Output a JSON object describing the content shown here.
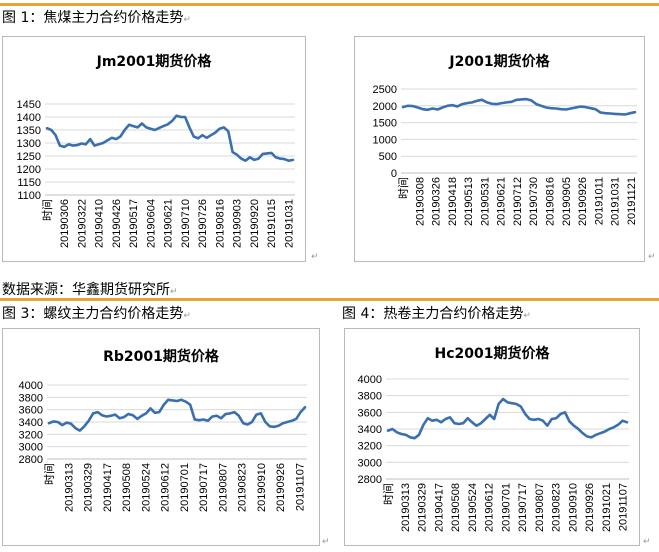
{
  "captions": {
    "fig1": "图 1：焦煤主力合约价格走势",
    "source": "数据来源：华鑫期货研究所",
    "fig3": "图 3：螺纹主力合约价格走势",
    "fig4": "图 4：热卷主力合约价格走势"
  },
  "para_mark": "↵",
  "colors": {
    "line": "#3a6fb0",
    "grid": "#d9d9d9",
    "rule": "#e8a23a"
  },
  "chart_data": [
    {
      "type": "line",
      "title": "Jm2001期货价格",
      "ylim": [
        1100,
        1450
      ],
      "yticks": [
        1100,
        1150,
        1200,
        1250,
        1300,
        1350,
        1400,
        1450
      ],
      "xlabels": [
        "时间",
        "20190306",
        "20190322",
        "20190410",
        "20190426",
        "20190517",
        "20190604",
        "20190621",
        "20190710",
        "20190726",
        "20190816",
        "20190903",
        "20190920",
        "20191015",
        "20191031"
      ],
      "series": [
        {
          "values": [
            1357,
            1350,
            1330,
            1290,
            1285,
            1295,
            1290,
            1292,
            1298,
            1295,
            1315,
            1290,
            1295,
            1300,
            1310,
            1320,
            1315,
            1325,
            1350,
            1370,
            1365,
            1360,
            1375,
            1360,
            1355,
            1350,
            1358,
            1365,
            1372,
            1385,
            1405,
            1400,
            1400,
            1360,
            1325,
            1318,
            1330,
            1320,
            1330,
            1340,
            1355,
            1360,
            1345,
            1265,
            1255,
            1240,
            1232,
            1245,
            1235,
            1240,
            1258,
            1260,
            1262,
            1245,
            1240,
            1238,
            1232,
            1235
          ]
        }
      ]
    },
    {
      "type": "line",
      "title": "J2001期货价格",
      "ylim": [
        0,
        2500
      ],
      "yticks": [
        0,
        500,
        1000,
        1500,
        2000,
        2500
      ],
      "xlabels": [
        "时间",
        "20190308",
        "20190326",
        "20190418",
        "20190513",
        "20190531",
        "20190621",
        "20190712",
        "20190730",
        "20190816",
        "20190905",
        "20190926",
        "20191011",
        "20191031",
        "20191121"
      ],
      "series": [
        {
          "values": [
            1960,
            2000,
            1990,
            1950,
            1900,
            1880,
            1920,
            1890,
            1950,
            2000,
            2020,
            1980,
            2050,
            2080,
            2100,
            2150,
            2180,
            2100,
            2060,
            2050,
            2080,
            2100,
            2120,
            2180,
            2190,
            2200,
            2160,
            2050,
            2000,
            1950,
            1930,
            1920,
            1900,
            1890,
            1920,
            1950,
            1980,
            1960,
            1930,
            1900,
            1800,
            1780,
            1770,
            1760,
            1750,
            1740,
            1780,
            1810
          ]
        }
      ]
    },
    {
      "type": "line",
      "title": "Rb2001期货价格",
      "ylim": [
        2800,
        4000
      ],
      "yticks": [
        2800,
        3000,
        3200,
        3400,
        3600,
        3800,
        4000
      ],
      "xlabels": [
        "时间",
        "20190313",
        "20190329",
        "20190417",
        "20190508",
        "20190524",
        "20190612",
        "20190701",
        "20190717",
        "20190807",
        "20190823",
        "20190910",
        "20190926",
        "20191107"
      ],
      "series": [
        {
          "values": [
            3380,
            3410,
            3400,
            3350,
            3390,
            3370,
            3300,
            3260,
            3330,
            3420,
            3540,
            3560,
            3510,
            3490,
            3500,
            3520,
            3460,
            3480,
            3530,
            3510,
            3450,
            3500,
            3540,
            3620,
            3550,
            3560,
            3680,
            3760,
            3750,
            3740,
            3760,
            3730,
            3680,
            3440,
            3430,
            3440,
            3420,
            3490,
            3500,
            3460,
            3530,
            3540,
            3560,
            3500,
            3380,
            3360,
            3400,
            3520,
            3540,
            3400,
            3330,
            3320,
            3340,
            3380,
            3400,
            3420,
            3450,
            3560,
            3640
          ]
        }
      ]
    },
    {
      "type": "line",
      "title": "Hc2001期货价格",
      "ylim": [
        2800,
        4000
      ],
      "yticks": [
        2800,
        3000,
        3200,
        3400,
        3600,
        3800,
        4000
      ],
      "xlabels": [
        "时间",
        "20190313",
        "20190329",
        "20190417",
        "20190508",
        "20190524",
        "20190612",
        "20190701",
        "20190717",
        "20190807",
        "20190823",
        "20190910",
        "20190926",
        "20191021",
        "20191107"
      ],
      "series": [
        {
          "values": [
            3380,
            3400,
            3360,
            3340,
            3330,
            3300,
            3290,
            3330,
            3450,
            3530,
            3500,
            3510,
            3480,
            3520,
            3540,
            3470,
            3460,
            3470,
            3530,
            3480,
            3440,
            3470,
            3520,
            3570,
            3520,
            3700,
            3760,
            3720,
            3710,
            3700,
            3670,
            3580,
            3520,
            3510,
            3520,
            3500,
            3440,
            3520,
            3530,
            3580,
            3600,
            3490,
            3440,
            3400,
            3350,
            3310,
            3300,
            3330,
            3350,
            3370,
            3400,
            3420,
            3450,
            3500,
            3480
          ]
        }
      ]
    }
  ]
}
